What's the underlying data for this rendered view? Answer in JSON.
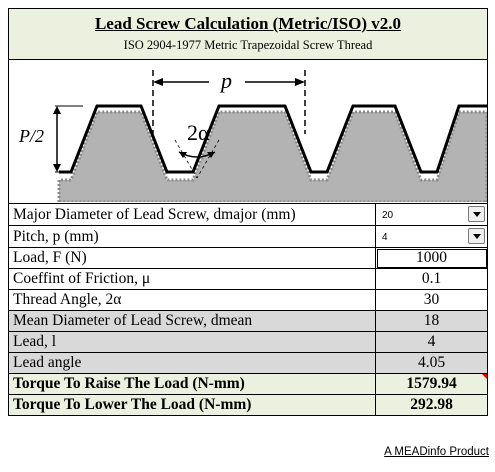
{
  "header": {
    "title": "Lead Screw Calculation (Metric/ISO) v2.0",
    "subtitle": "ISO 2904-1977 Metric Trapezoidal Screw Thread"
  },
  "diagram": {
    "pitch_label": "p",
    "half_pitch_label": "P/2",
    "angle_label": "2α"
  },
  "rows": [
    {
      "label": "Major Diameter of Lead Screw, dmajor (mm)",
      "value": "20"
    },
    {
      "label": "Pitch, p (mm)",
      "value": "4"
    },
    {
      "label": "Load, F (N)",
      "value": "1000"
    },
    {
      "label": "Coeffint of Friction, μ",
      "value": "0.1"
    },
    {
      "label": "Thread Angle, 2α",
      "value": "30"
    },
    {
      "label": "Mean Diameter of Lead Screw, dmean",
      "value": "18"
    },
    {
      "label": "Lead, l",
      "value": "4"
    },
    {
      "label": "Lead angle",
      "value": "4.05"
    },
    {
      "label": "Torque To Raise The Load (N-mm)",
      "value": "1579.94"
    },
    {
      "label": "Torque To Lower The Load (N-mm)",
      "value": "292.98"
    }
  ],
  "footer": {
    "credit": "A MEADinfo Product"
  },
  "colors": {
    "header_bg": "#ebf1de",
    "grey_row": "#d9d9d9",
    "result_bg": "#ebf1de"
  }
}
